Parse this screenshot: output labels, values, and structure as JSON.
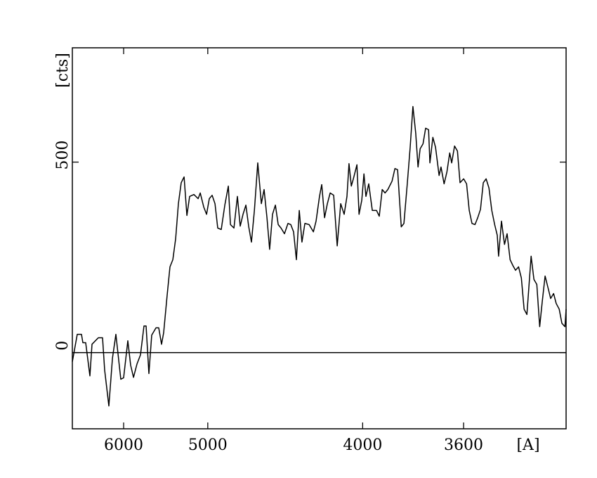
{
  "chart_data": {
    "type": "line",
    "xlabel": "[A]",
    "ylabel": "[cts]",
    "xscale": "inverse-square",
    "xlim": [
      7014,
      3296
    ],
    "ylim": [
      -200,
      800
    ],
    "xticks": [
      6000,
      5000,
      4000,
      3600
    ],
    "yticks": [
      0,
      500
    ],
    "zero_line": true,
    "x": [
      7014,
      6894,
      6795,
      6764,
      6701,
      6611,
      6567,
      6441,
      6361,
      6322,
      6246,
      6184,
      6125,
      6045,
      6000,
      5935,
      5893,
      5851,
      5801,
      5752,
      5704,
      5676,
      5639,
      5603,
      5549,
      5515,
      5481,
      5456,
      5415,
      5383,
      5351,
      5320,
      5290,
      5260,
      5230,
      5201,
      5173,
      5131,
      5090,
      5070,
      5037,
      5011,
      4986,
      4961,
      4936,
      4912,
      4882,
      4852,
      4823,
      4806,
      4778,
      4751,
      4729,
      4708,
      4686,
      4666,
      4645,
      4624,
      4600,
      4575,
      4556,
      4536,
      4518,
      4499,
      4480,
      4462,
      4444,
      4422,
      4400,
      4383,
      4366,
      4349,
      4332,
      4316,
      4299,
      4275,
      4251,
      4236,
      4217,
      4205,
      4190,
      4175,
      4160,
      4142,
      4124,
      4106,
      4089,
      4075,
      4065,
      4054,
      4044,
      4027,
      4017,
      4004,
      3994,
      3985,
      3972,
      3956,
      3937,
      3925,
      3912,
      3900,
      3888,
      3870,
      3858,
      3847,
      3832,
      3821,
      3807,
      3796,
      3785,
      3774,
      3765,
      3757,
      3746,
      3736,
      3725,
      3720,
      3709,
      3699,
      3686,
      3679,
      3668,
      3658,
      3648,
      3641,
      3631,
      3621,
      3612,
      3600,
      3590,
      3581,
      3572,
      3562,
      3553,
      3544,
      3535,
      3526,
      3517,
      3508,
      3499,
      3491,
      3487,
      3478,
      3469,
      3461,
      3452,
      3444,
      3436,
      3427,
      3419,
      3411,
      3403,
      3391,
      3383,
      3375,
      3367,
      3360,
      3352,
      3344,
      3337,
      3329,
      3322,
      3314,
      3307,
      3299,
      3296
    ],
    "series": [
      {
        "color": "#000000",
        "values": [
          -24,
          48,
          48,
          26,
          26,
          -61,
          22,
          39,
          39,
          -46,
          -140,
          -15,
          48,
          -70,
          -66,
          31,
          -33,
          -65,
          -30,
          -6,
          70,
          70,
          -55,
          46,
          65,
          65,
          22,
          52,
          151,
          225,
          244,
          299,
          391,
          446,
          461,
          360,
          410,
          415,
          404,
          419,
          382,
          363,
          404,
          413,
          391,
          327,
          323,
          387,
          437,
          336,
          327,
          410,
          332,
          363,
          387,
          332,
          290,
          373,
          498,
          391,
          428,
          354,
          271,
          363,
          387,
          336,
          327,
          312,
          339,
          336,
          317,
          244,
          373,
          290,
          339,
          336,
          317,
          345,
          410,
          441,
          354,
          391,
          419,
          413,
          280,
          391,
          363,
          410,
          496,
          437,
          456,
          493,
          363,
          400,
          469,
          410,
          443,
          373,
          373,
          358,
          428,
          419,
          428,
          450,
          483,
          480,
          330,
          339,
          446,
          539,
          646,
          576,
          487,
          535,
          548,
          589,
          585,
          498,
          565,
          539,
          465,
          487,
          443,
          474,
          524,
          498,
          542,
          529,
          446,
          456,
          443,
          373,
          339,
          336,
          354,
          376,
          446,
          456,
          432,
          373,
          336,
          308,
          253,
          345,
          284,
          312,
          244,
          229,
          216,
          225,
          196,
          114,
          100,
          253,
          192,
          179,
          68,
          133,
          201,
          170,
          142,
          155,
          129,
          114,
          77,
          68,
          114
        ]
      }
    ]
  }
}
